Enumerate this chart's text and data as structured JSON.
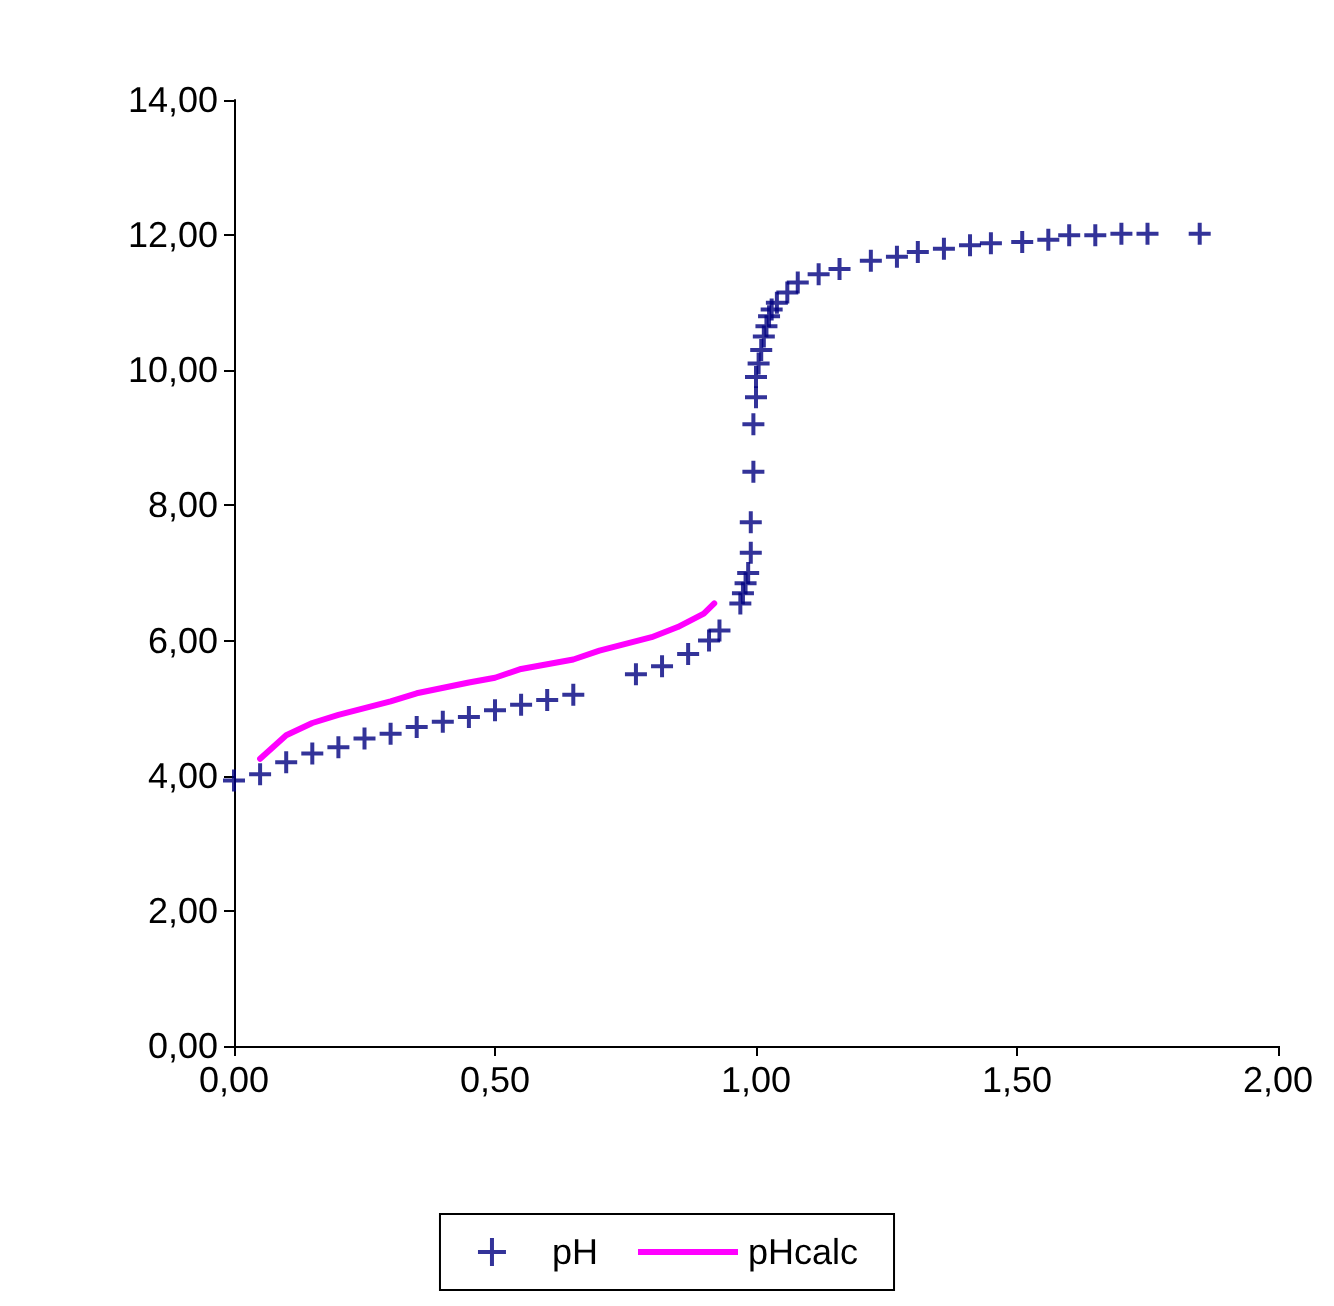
{
  "chart_data": {
    "type": "scatter",
    "marker": "cross",
    "grid": false,
    "legend": "bottom",
    "xlim": [
      0,
      2
    ],
    "xticks": [
      {
        "value": 0,
        "label": "0,00"
      },
      {
        "value": 0.5,
        "label": "0,50"
      },
      {
        "value": 1,
        "label": "1,00"
      },
      {
        "value": 1.5,
        "label": "1,50"
      },
      {
        "value": 2,
        "label": "2,00"
      }
    ],
    "ylim": [
      0,
      14
    ],
    "yticks": [
      {
        "value": 0,
        "label": "0,00"
      },
      {
        "value": 2,
        "label": "2,00"
      },
      {
        "value": 4,
        "label": "4,00"
      },
      {
        "value": 6,
        "label": "6,00"
      },
      {
        "value": 8,
        "label": "8,00"
      },
      {
        "value": 10,
        "label": "10,00"
      },
      {
        "value": 12,
        "label": "12,00"
      },
      {
        "value": 14,
        "label": "14,00"
      }
    ],
    "series": [
      {
        "name": "pH",
        "color": "#000080",
        "x": [
          0,
          0.05,
          0.1,
          0.15,
          0.2,
          0.25,
          0.3,
          0.35,
          0.4,
          0.45,
          0.5,
          0.55,
          0.6,
          0.65,
          0.77,
          0.82,
          0.87,
          0.91,
          0.93,
          0.97,
          0.975,
          0.98,
          0.985,
          0.99,
          0.99,
          0.995,
          0.995,
          1.0,
          1.0,
          1.005,
          1.01,
          1.015,
          1.02,
          1.025,
          1.03,
          1.04,
          1.06,
          1.08,
          1.12,
          1.16,
          1.22,
          1.27,
          1.31,
          1.36,
          1.41,
          1.45,
          1.51,
          1.56,
          1.6,
          1.65,
          1.7,
          1.75,
          1.85
        ],
        "values": [
          3.93,
          4.02,
          4.2,
          4.33,
          4.42,
          4.55,
          4.62,
          4.72,
          4.8,
          4.87,
          4.97,
          5.05,
          5.12,
          5.2,
          5.5,
          5.62,
          5.8,
          6.0,
          6.15,
          6.55,
          6.7,
          6.85,
          7.0,
          7.3,
          7.75,
          8.5,
          9.2,
          9.6,
          9.9,
          10.1,
          10.3,
          10.5,
          10.65,
          10.8,
          10.9,
          11.0,
          11.15,
          11.3,
          11.42,
          11.5,
          11.62,
          11.68,
          11.75,
          11.8,
          11.85,
          11.88,
          11.9,
          11.93,
          12.0,
          12.0,
          12.02,
          12.02,
          12.02
        ]
      },
      {
        "name": "pHcalc",
        "type": "line",
        "marker": "none",
        "color": "#ff00ff",
        "x": [
          0.05,
          0.1,
          0.15,
          0.2,
          0.3,
          0.35,
          0.45,
          0.5,
          0.55,
          0.65,
          0.7,
          0.8,
          0.85,
          0.9,
          0.92
        ],
        "values": [
          4.25,
          4.6,
          4.78,
          4.9,
          5.1,
          5.22,
          5.38,
          5.45,
          5.58,
          5.72,
          5.85,
          6.05,
          6.2,
          6.4,
          6.55
        ]
      }
    ]
  }
}
